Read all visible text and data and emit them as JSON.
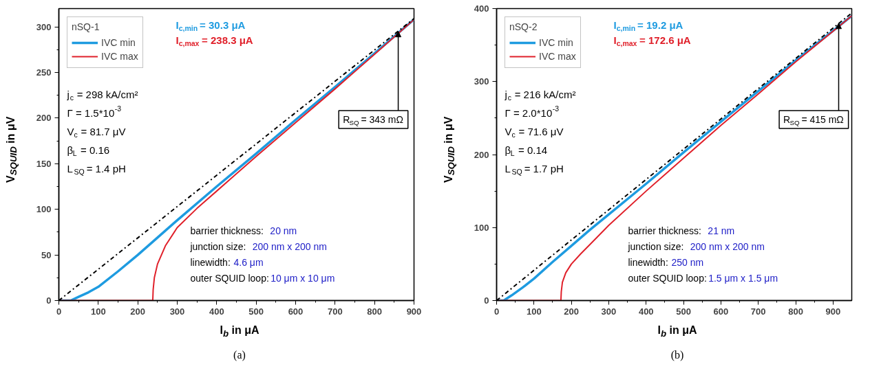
{
  "chart_data": [
    {
      "type": "line",
      "xlabel": "I$_{b}$ in μA",
      "ylabel": "V$_{SQUID}$ in μV",
      "legend_title": "nSQ-1",
      "legend": "top left",
      "xlim": [
        0,
        900
      ],
      "xticks": [
        0,
        100,
        200,
        300,
        400,
        500,
        600,
        700,
        800,
        900
      ],
      "ylim": [
        0,
        320
      ],
      "yticks": [
        0,
        50,
        100,
        150,
        200,
        250,
        300
      ],
      "grid": false,
      "series": [
        {
          "name": "IVC min",
          "color": "#1e9be0",
          "x": [
            0,
            30,
            50,
            75,
            100,
            150,
            200,
            250,
            300,
            400,
            500,
            600,
            700,
            800,
            900
          ],
          "values": [
            0,
            0,
            4,
            9,
            15,
            32,
            50,
            69,
            88,
            125,
            161,
            198,
            234,
            271,
            308
          ]
        },
        {
          "name": "IVC max",
          "color": "#e0202a",
          "x": [
            0,
            238,
            239,
            242,
            250,
            270,
            300,
            350,
            400,
            500,
            600,
            700,
            800,
            900
          ],
          "values": [
            0,
            0,
            12,
            25,
            40,
            60,
            80,
            101,
            120,
            158,
            195,
            232,
            270,
            308
          ]
        },
        {
          "color": "#000000",
          "line_style": "dashdot",
          "x": [
            0,
            900
          ],
          "values": [
            0,
            309
          ]
        }
      ],
      "annotations": [
        "I$_{c,min}$ = 30.3 μA",
        "I$_{c,max}$ = 238.3 μA",
        "j$_{c}$ = 298 kA/cm²",
        "Γ = 1.5*10$^{-3}$",
        "V$_{c}$ = 81.7 μV",
        "β$_{L}$ = 0.16",
        "L$_{SQ}$ = 1.4 pH",
        "barrier thickness: 20 nm",
        "junction size: 200 nm x 200 nm",
        "linewidth: 4.6 μm",
        "outer SQUID loop: 10 μm x 10 μm",
        "(a)",
        {
          "text": "R$_{SQ}$ = 343 mΩ",
          "x": 860,
          "y": 295
        }
      ]
    },
    {
      "type": "line",
      "xlabel": "I$_{b}$ in μA",
      "ylabel": "V$_{SQUID}$ in μV",
      "legend_title": "nSQ-2",
      "legend": "top left",
      "xlim": [
        0,
        950
      ],
      "xticks": [
        0,
        100,
        200,
        300,
        400,
        500,
        600,
        700,
        800,
        900
      ],
      "ylim": [
        0,
        400
      ],
      "yticks": [
        0,
        100,
        200,
        300,
        400
      ],
      "grid": false,
      "series": [
        {
          "name": "IVC min",
          "color": "#1e9be0",
          "x": [
            0,
            19,
            40,
            70,
            100,
            150,
            200,
            250,
            300,
            400,
            500,
            600,
            700,
            800,
            950
          ],
          "values": [
            0,
            0,
            7,
            18,
            30,
            53,
            75,
            97,
            118,
            160,
            203,
            245,
            287,
            329,
            390
          ]
        },
        {
          "name": "IVC max",
          "color": "#e0202a",
          "x": [
            0,
            172,
            173,
            176,
            185,
            200,
            225,
            250,
            300,
            400,
            500,
            600,
            700,
            800,
            950
          ],
          "values": [
            0,
            0,
            12,
            25,
            38,
            50,
            64,
            77,
            103,
            150,
            195,
            240,
            283,
            327,
            390
          ]
        },
        {
          "color": "#000000",
          "line_style": "dashdot",
          "x": [
            0,
            950
          ],
          "values": [
            0,
            394
          ]
        }
      ],
      "annotations": [
        "I$_{c,min}$ = 19.2 μA",
        "I$_{c,max}$ = 172.6 μA",
        "j$_{c}$ = 216 kA/cm²",
        "Γ = 2.0*10$^{-3}$",
        "V$_{c}$ = 71.6 μV",
        "β$_{L}$ = 0.14",
        "L$_{SQ}$ = 1.7 pH",
        "barrier thickness: 21 nm",
        "junction size: 200 nm x 200 nm",
        "linewidth: 250 nm",
        "outer SQUID loop: 1.5 μm x 1.5 μm",
        "(b)",
        {
          "text": "R$_{SQ}$ = 415 mΩ",
          "x": 915,
          "y": 380
        }
      ]
    }
  ]
}
